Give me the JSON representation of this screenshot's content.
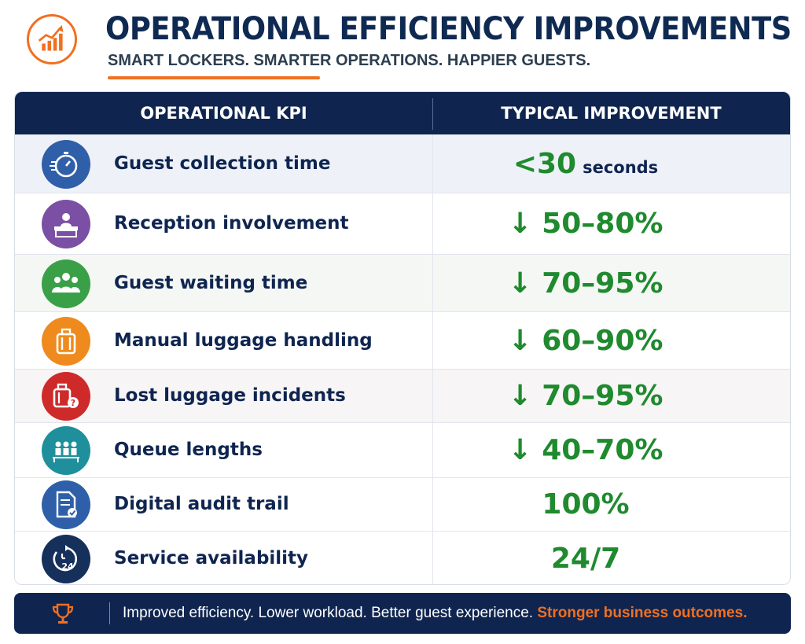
{
  "header": {
    "icon": "growth-chart-icon",
    "title": "OPERATIONAL EFFICIENCY IMPROVEMENTS",
    "subtitle": "SMART LOCKERS. SMARTER OPERATIONS. HAPPIER GUESTS."
  },
  "table": {
    "columns": [
      "OPERATIONAL KPI",
      "TYPICAL IMPROVEMENT"
    ],
    "rows": [
      {
        "label": "Guest collection time",
        "value": "<30",
        "unit": "seconds",
        "icon": "stopwatch-icon",
        "icon_color": "#2f5fa8"
      },
      {
        "label": "Reception involvement",
        "value": "↓ 50–80%",
        "unit": "",
        "icon": "reception-desk-icon",
        "icon_color": "#7b4fa3"
      },
      {
        "label": "Guest waiting time",
        "value": "↓ 70–95%",
        "unit": "",
        "icon": "group-people-icon",
        "icon_color": "#3aa047"
      },
      {
        "label": "Manual luggage handling",
        "value": "↓ 60–90%",
        "unit": "",
        "icon": "luggage-icon",
        "icon_color": "#ee8a1e"
      },
      {
        "label": "Lost luggage incidents",
        "value": "↓ 70–95%",
        "unit": "",
        "icon": "lost-luggage-icon",
        "icon_color": "#cf2a2a"
      },
      {
        "label": "Queue lengths",
        "value": "↓ 40–70%",
        "unit": "",
        "icon": "queue-icon",
        "icon_color": "#1f8f9c"
      },
      {
        "label": "Digital audit trail",
        "value": "100%",
        "unit": "",
        "icon": "audit-document-icon",
        "icon_color": "#2f5fa8"
      },
      {
        "label": "Service availability",
        "value": "24/7",
        "unit": "",
        "icon": "clock-24-icon",
        "icon_color": "#16305c"
      }
    ]
  },
  "footer": {
    "icon": "trophy-icon",
    "text": "Improved efficiency. Lower workload. Better guest experience.",
    "highlight": "Stronger business outcomes."
  },
  "colors": {
    "navy": "#0f2550",
    "accent_orange": "#f07020",
    "value_green": "#1f8a2e"
  }
}
